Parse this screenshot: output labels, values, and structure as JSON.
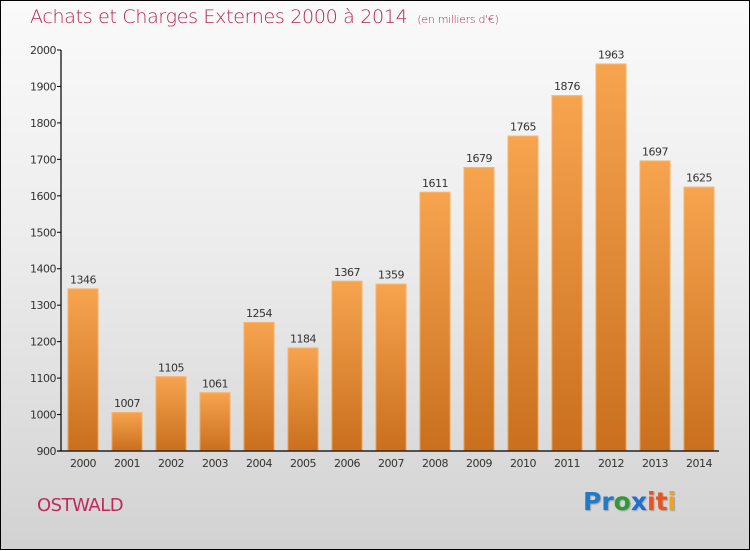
{
  "header": {
    "title": "Achats et Charges Externes 2000 à 2014",
    "unit": "(en milliers d'€)"
  },
  "footer": {
    "city": "OSTWALD",
    "logo": {
      "letters": [
        {
          "ch": "P",
          "color": "#1f7bc8"
        },
        {
          "ch": "r",
          "color": "#1f7bc8"
        },
        {
          "ch": "o",
          "color": "#2e9a3a"
        },
        {
          "ch": "x",
          "color": "#1f6fd0"
        },
        {
          "ch": "i",
          "color": "#e8531f"
        },
        {
          "ch": "t",
          "color": "#e8531f"
        },
        {
          "ch": "i",
          "color": "#f0a21a"
        }
      ]
    }
  },
  "colors": {
    "bar_top": "#f7a44f",
    "bar_bottom": "#c96f1d",
    "title": "#b5254f"
  },
  "chart_data": {
    "type": "bar",
    "title": "Achats et Charges Externes 2000 à 2014 (en milliers d'€)",
    "xlabel": "",
    "ylabel": "",
    "categories": [
      "2000",
      "2001",
      "2002",
      "2003",
      "2004",
      "2005",
      "2006",
      "2007",
      "2008",
      "2009",
      "2010",
      "2011",
      "2012",
      "2013",
      "2014"
    ],
    "values": [
      1346,
      1007,
      1105,
      1061,
      1254,
      1184,
      1367,
      1359,
      1611,
      1679,
      1765,
      1876,
      1963,
      1697,
      1625
    ],
    "ylim": [
      900,
      2000
    ],
    "yticks": [
      900,
      1000,
      1100,
      1200,
      1300,
      1400,
      1500,
      1600,
      1700,
      1800,
      1900,
      2000
    ],
    "grid": false,
    "legend": "none"
  }
}
